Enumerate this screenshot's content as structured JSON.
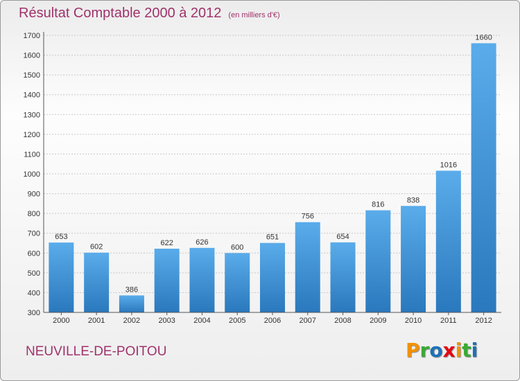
{
  "chart_data": {
    "type": "bar",
    "title": "Résultat Comptable 2000 à 2012",
    "unit": "(en milliers d'€)",
    "categories": [
      "2000",
      "2001",
      "2002",
      "2003",
      "2004",
      "2005",
      "2006",
      "2007",
      "2008",
      "2009",
      "2010",
      "2011",
      "2012"
    ],
    "values": [
      653,
      602,
      386,
      622,
      626,
      600,
      651,
      756,
      654,
      816,
      838,
      1016,
      1660
    ],
    "ylim": [
      300,
      1700
    ],
    "yticks": [
      300,
      400,
      500,
      600,
      700,
      800,
      900,
      1000,
      1100,
      1200,
      1300,
      1400,
      1500,
      1600,
      1700
    ],
    "grid": true,
    "bar_color": "#3a8fd4"
  },
  "commune": "NEUVILLE-DE-POITOU",
  "logo": [
    "P",
    "r",
    "o",
    "x",
    "i",
    "t",
    "i"
  ],
  "logo_colors": [
    "#f39200",
    "#3aaa35",
    "#1d71b8",
    "#e30613",
    "#f39200",
    "#3aaa35",
    "#1d71b8"
  ]
}
